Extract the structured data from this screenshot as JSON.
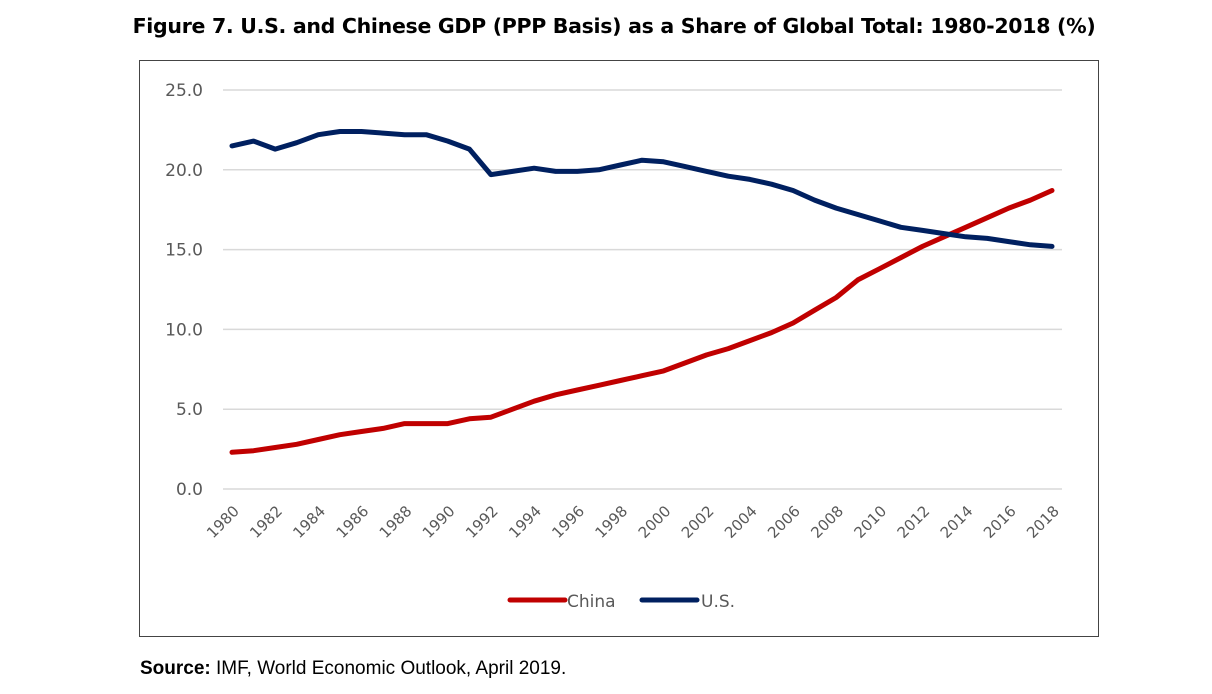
{
  "figure": {
    "title": "Figure 7. U.S. and Chinese GDP (PPP Basis) as a Share of Global Total: 1980-2018 (%)",
    "source_label": "Source:",
    "source_text": " IMF, World Economic Outlook, April 2019."
  },
  "chart_data": {
    "type": "line",
    "title": "Figure 7. U.S. and Chinese GDP (PPP Basis) as a Share of Global Total: 1980-2018 (%)",
    "xlabel": "",
    "ylabel": "",
    "ylim": [
      0,
      25
    ],
    "yticks": [
      "0.0",
      "5.0",
      "10.0",
      "15.0",
      "20.0",
      "25.0"
    ],
    "ytick_values": [
      0,
      5,
      10,
      15,
      20,
      25
    ],
    "x": [
      1980,
      1981,
      1982,
      1983,
      1984,
      1985,
      1986,
      1987,
      1988,
      1989,
      1990,
      1991,
      1992,
      1993,
      1994,
      1995,
      1996,
      1997,
      1998,
      1999,
      2000,
      2001,
      2002,
      2003,
      2004,
      2005,
      2006,
      2007,
      2008,
      2009,
      2010,
      2011,
      2012,
      2013,
      2014,
      2015,
      2016,
      2017,
      2018
    ],
    "xtick_labels": [
      "1980",
      "1982",
      "1984",
      "1986",
      "1988",
      "1990",
      "1992",
      "1994",
      "1996",
      "1998",
      "2000",
      "2002",
      "2004",
      "2006",
      "2008",
      "2010",
      "2012",
      "2014",
      "2016",
      "2018"
    ],
    "grid": true,
    "legend_position": "bottom",
    "series": [
      {
        "name": "China",
        "color": "#C00000",
        "values": [
          2.3,
          2.4,
          2.6,
          2.8,
          3.1,
          3.4,
          3.6,
          3.8,
          4.1,
          4.1,
          4.1,
          4.4,
          4.5,
          5.0,
          5.5,
          5.9,
          6.2,
          6.5,
          6.8,
          7.1,
          7.4,
          7.9,
          8.4,
          8.8,
          9.3,
          9.8,
          10.4,
          11.2,
          12.0,
          13.1,
          13.8,
          14.5,
          15.2,
          15.8,
          16.4,
          17.0,
          17.6,
          18.1,
          18.7
        ]
      },
      {
        "name": "U.S.",
        "color": "#002060",
        "values": [
          21.5,
          21.8,
          21.3,
          21.7,
          22.2,
          22.4,
          22.4,
          22.3,
          22.2,
          22.2,
          21.8,
          21.3,
          19.7,
          19.9,
          20.1,
          19.9,
          19.9,
          20.0,
          20.3,
          20.6,
          20.5,
          20.2,
          19.9,
          19.6,
          19.4,
          19.1,
          18.7,
          18.1,
          17.6,
          17.2,
          16.8,
          16.4,
          16.2,
          16.0,
          15.8,
          15.7,
          15.5,
          15.3,
          15.2
        ]
      }
    ]
  }
}
